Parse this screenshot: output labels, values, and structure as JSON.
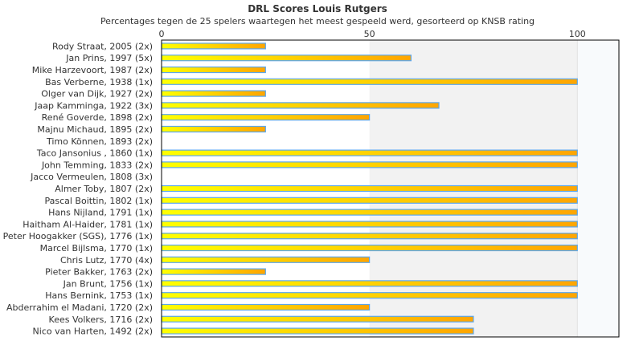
{
  "chart_data": {
    "type": "bar",
    "orientation": "horizontal",
    "title": "DRL Scores Louis Rutgers",
    "subtitle": "Percentages tegen de 25 spelers waartegen het meest gespeeld werd, gesorteerd op KNSB rating",
    "xlim": [
      0,
      110
    ],
    "xticks": [
      0,
      50,
      100
    ],
    "categories": [
      "Rody Straat, 2005 (2x)",
      "Jan Prins, 1997 (5x)",
      "Mike Harzevoort, 1987 (2x)",
      "Bas Verberne, 1938 (1x)",
      "Olger van Dijk, 1927 (2x)",
      "Jaap Kamminga, 1922 (3x)",
      "René Goverde, 1898 (2x)",
      "Majnu Michaud, 1895 (2x)",
      "Timo Können, 1893 (2x)",
      "Taco Jansonius , 1860 (1x)",
      "John Temming, 1833 (2x)",
      "Jacco Vermeulen, 1808 (3x)",
      "Almer Toby, 1807 (2x)",
      "Pascal Boittin, 1802 (1x)",
      "Hans Nijland, 1791 (1x)",
      "Haitham Al-Haider, 1781 (1x)",
      "Peter Hoogakker (SGS), 1776 (1x)",
      "Marcel Bijlsma, 1770 (1x)",
      "Chris Lutz, 1770 (4x)",
      "Pieter Bakker, 1763 (2x)",
      "Jan Brunt, 1756 (1x)",
      "Hans Bernink, 1753 (1x)",
      "Abderrahim el Madani, 1720 (2x)",
      "Kees Volkers, 1716 (2x)",
      "Nico van Harten, 1492 (2x)"
    ],
    "values": [
      25,
      60,
      25,
      100,
      25,
      66.7,
      50,
      25,
      0,
      100,
      100,
      0,
      100,
      100,
      100,
      100,
      100,
      100,
      50,
      25,
      100,
      100,
      50,
      75,
      75
    ],
    "colors": {
      "bar_start": "#ffff00",
      "bar_end": "#ffa500",
      "bar_border": "#5aa7f0",
      "band_mid": "#f2f2f2",
      "band_high": "#f8fafc"
    }
  }
}
